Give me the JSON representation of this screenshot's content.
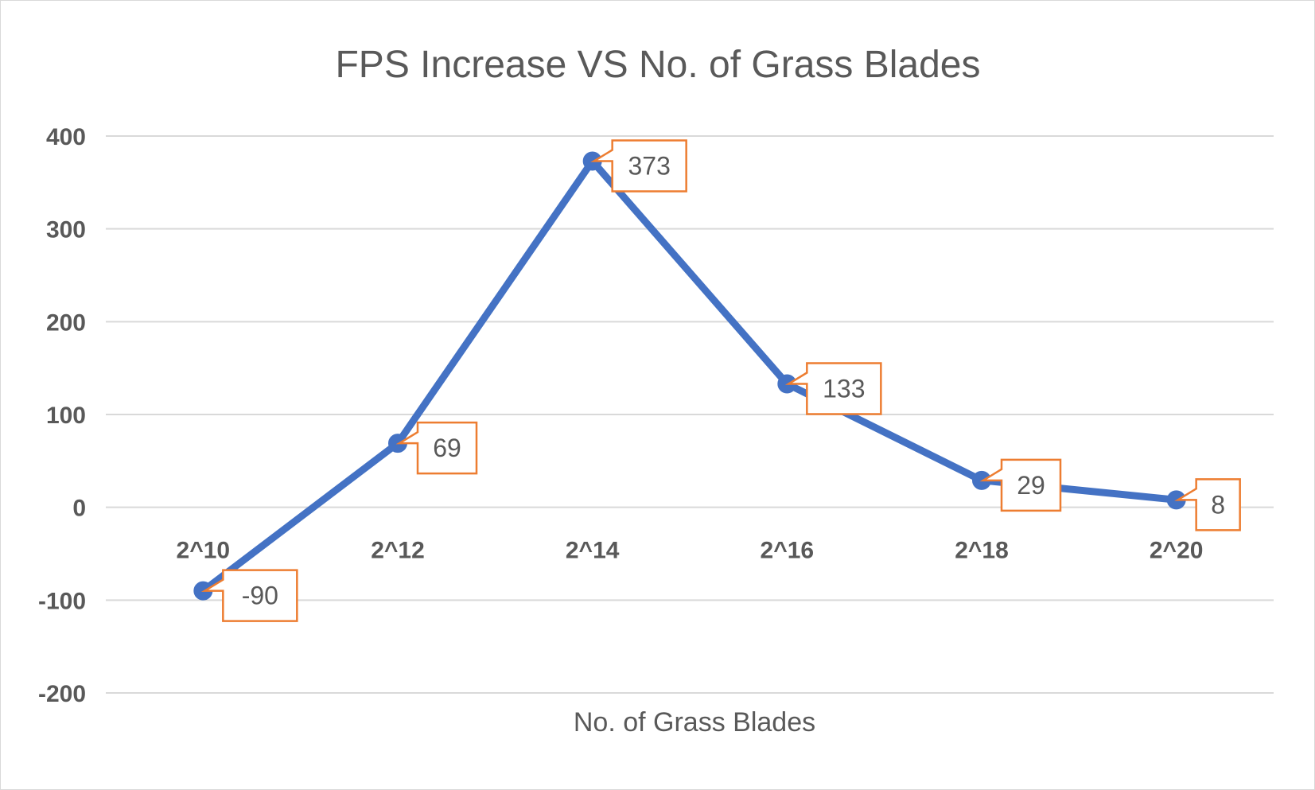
{
  "chart_data": {
    "type": "line",
    "title": "FPS Increase VS No. of Grass Blades",
    "xlabel": "No. of Grass Blades",
    "ylabel": "",
    "categories": [
      "2^10",
      "2^12",
      "2^14",
      "2^16",
      "2^18",
      "2^20"
    ],
    "series": [
      {
        "name": "FPS Increase",
        "values": [
          -90,
          69,
          373,
          133,
          29,
          8
        ]
      }
    ],
    "data_labels": [
      "-90",
      "69",
      "373",
      "133",
      "29",
      "8"
    ],
    "ylim": [
      -200,
      400
    ],
    "yticks": [
      -200,
      -100,
      0,
      100,
      200,
      300,
      400
    ],
    "ytick_labels": [
      "-200",
      "-100",
      "0",
      "100",
      "200",
      "300",
      "400"
    ],
    "grid": true,
    "legend": "none",
    "colors": {
      "line": "#4472c4",
      "callout_border": "#ed7d31",
      "grid": "#d9d9d9",
      "text": "#595959"
    }
  }
}
